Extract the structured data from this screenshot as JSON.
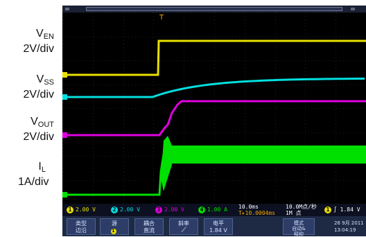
{
  "labels": {
    "ven": {
      "symbol": "V",
      "sub": "EN",
      "scale": "2V/div"
    },
    "vss": {
      "symbol": "V",
      "sub": "SS",
      "scale": "2V/div"
    },
    "vout": {
      "symbol": "V",
      "sub": "OUT",
      "scale": "2V/div"
    },
    "il": {
      "symbol": "I",
      "sub": "L",
      "scale": "1A/div"
    }
  },
  "trigger_marker": "T",
  "colors": {
    "ch1": "#e8e000",
    "ch2": "#00e0e0",
    "ch3": "#e000e0",
    "ch4": "#00e000",
    "background": "#000000",
    "grid": "#3a3a3a"
  },
  "status": {
    "ch1": "2.00 V",
    "ch2": "2.00 V",
    "ch3": "2.00 V",
    "ch4": "1.00 A",
    "timebase": "10.0ms",
    "delay": "10.0004ms",
    "sample": "10.0M点/秒",
    "record": "1M 点",
    "trigger_level": "1.84 V"
  },
  "softkeys": {
    "k1": "类型\n边沿",
    "k2": "源",
    "k3": "耦合\n直流",
    "k4": "斜率",
    "k5": "电平\n1.84 V",
    "k6": "模式\n自动&\n释抑",
    "k7": "26 9月 2011\n13:04:19"
  },
  "icons": {
    "ch_circle": "channel-number-circle",
    "slope": "rising-edge-icon"
  }
}
